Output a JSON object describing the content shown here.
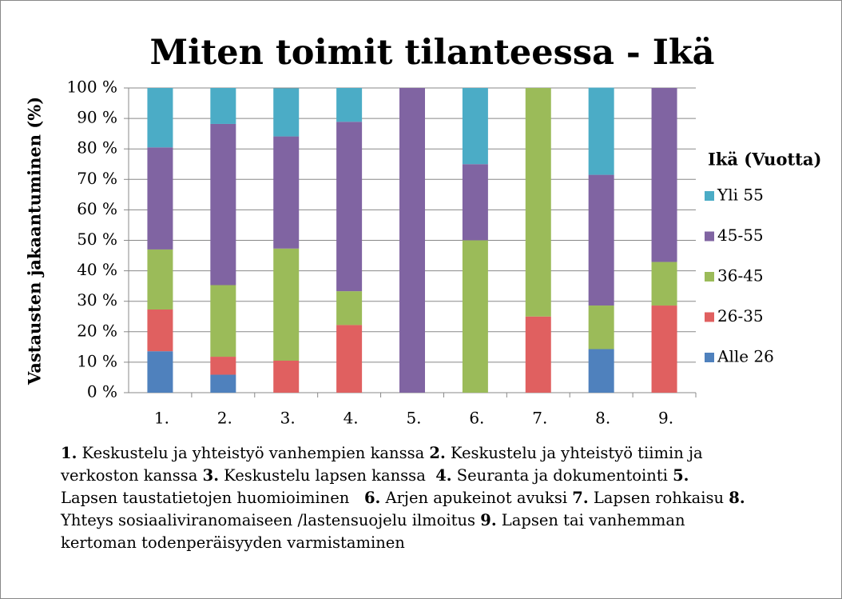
{
  "chart_data": {
    "type": "stacked_bar",
    "title": "Miten toimit tilanteessa - Ikä",
    "y_label": "Vastausten jakaantuminen (%)",
    "legend_title": "Ikä (Vuotta)",
    "categories": [
      "1.",
      "2.",
      "3.",
      "4.",
      "5.",
      "6.",
      "7.",
      "8.",
      "9."
    ],
    "series": [
      {
        "name": "Alle 26",
        "color": "#4f81bd",
        "values": [
          13.6,
          5.9,
          0,
          0,
          0,
          0,
          0,
          14.3,
          0
        ]
      },
      {
        "name": "26-35",
        "color": "#e06060",
        "values": [
          13.7,
          5.9,
          10.5,
          22.2,
          0,
          0,
          25,
          0,
          28.6
        ]
      },
      {
        "name": "36-45",
        "color": "#9bbb59",
        "values": [
          19.7,
          23.5,
          36.8,
          11.1,
          0,
          50,
          75,
          14.3,
          14.3
        ]
      },
      {
        "name": "45-55",
        "color": "#8064a2",
        "values": [
          33.5,
          52.9,
          36.8,
          55.6,
          100,
          25,
          0,
          42.9,
          57.1
        ]
      },
      {
        "name": "Yli 55",
        "color": "#4bacc6",
        "values": [
          19.5,
          11.8,
          15.8,
          11.1,
          0,
          25,
          0,
          28.6,
          0
        ]
      }
    ],
    "ylim": [
      0,
      100
    ],
    "yticks": [
      {
        "value": 0,
        "label": "0 %"
      },
      {
        "value": 10,
        "label": "10 %"
      },
      {
        "value": 20,
        "label": "20 %"
      },
      {
        "value": 30,
        "label": "30 %"
      },
      {
        "value": 40,
        "label": "40 %"
      },
      {
        "value": 50,
        "label": "50 %"
      },
      {
        "value": 60,
        "label": "60 %"
      },
      {
        "value": 70,
        "label": "70 %"
      },
      {
        "value": 80,
        "label": "80 %"
      },
      {
        "value": 90,
        "label": "90 %"
      },
      {
        "value": 100,
        "label": "100 %"
      }
    ],
    "grid": true,
    "legend": "right",
    "footnote": [
      {
        "number": "1.",
        "text": " Keskustelu ja yhteistyö vanhempien kanssa "
      },
      {
        "number": "2.",
        "text": " Keskustelu ja yhteistyö tiimin ja verkoston kanssa "
      },
      {
        "number": "3.",
        "text": " Keskustelu lapsen kanssa  "
      },
      {
        "number": "4.",
        "text": " Seuranta ja dokumentointi "
      },
      {
        "number": "5.",
        "text": " Lapsen taustatietojen huomioiminen   "
      },
      {
        "number": "6.",
        "text": " Arjen apukeinot avuksi "
      },
      {
        "number": "7.",
        "text": " Lapsen rohkaisu "
      },
      {
        "number": "8.",
        "text": " Yhteys sosiaaliviranomaiseen /lastensuojelu ilmoitus "
      },
      {
        "number": "9.",
        "text": " Lapsen tai vanhemman kertoman todenperäisyyden varmistaminen"
      }
    ]
  }
}
